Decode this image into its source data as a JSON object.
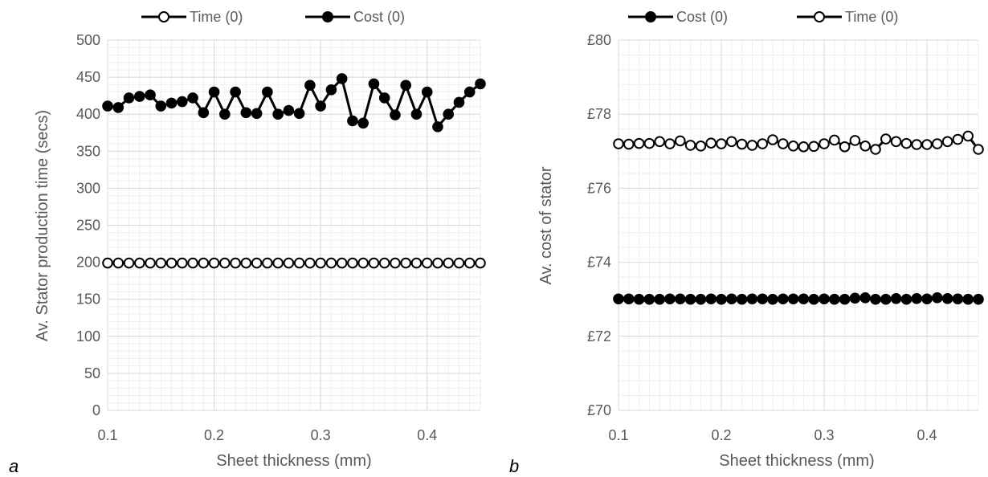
{
  "chart_data": [
    {
      "type": "line",
      "panel_label": "a",
      "xlabel": "Sheet thickness (mm)",
      "ylabel": "Av. Stator production time (secs)",
      "xlim": [
        0.1,
        0.45
      ],
      "ylim": [
        0,
        500
      ],
      "x_ticks": [
        "0.1",
        "0.2",
        "0.3",
        "0.4"
      ],
      "y_ticks": [
        "0",
        "50",
        "100",
        "150",
        "200",
        "250",
        "300",
        "350",
        "400",
        "450",
        "500"
      ],
      "grid": true,
      "legend_position": "top",
      "legend": [
        "Time (0)",
        "Cost (0)"
      ],
      "x": [
        0.1,
        0.11,
        0.12,
        0.13,
        0.14,
        0.15,
        0.16,
        0.17,
        0.18,
        0.19,
        0.2,
        0.21,
        0.22,
        0.23,
        0.24,
        0.25,
        0.26,
        0.27,
        0.28,
        0.29,
        0.3,
        0.31,
        0.32,
        0.33,
        0.34,
        0.35,
        0.36,
        0.37,
        0.38,
        0.39,
        0.4,
        0.41,
        0.42,
        0.43,
        0.44,
        0.45
      ],
      "series": [
        {
          "name": "Time (0)",
          "marker": "open-circle",
          "values": [
            199,
            199,
            199,
            199,
            199,
            199,
            199,
            199,
            199,
            199,
            199,
            199,
            199,
            199,
            199,
            199,
            199,
            199,
            199,
            199,
            199,
            199,
            199,
            199,
            199,
            199,
            199,
            199,
            199,
            199,
            199,
            199,
            199,
            199,
            199,
            199
          ]
        },
        {
          "name": "Cost (0)",
          "marker": "filled-circle",
          "values": [
            411,
            409,
            422,
            424,
            426,
            411,
            415,
            417,
            422,
            402,
            430,
            400,
            430,
            402,
            401,
            430,
            400,
            405,
            401,
            439,
            411,
            433,
            448,
            391,
            388,
            441,
            422,
            399,
            439,
            400,
            430,
            383,
            400,
            416,
            430,
            441
          ]
        }
      ]
    },
    {
      "type": "line",
      "panel_label": "b",
      "xlabel": "Sheet thickness (mm)",
      "ylabel": "Av. cost of stator",
      "xlim": [
        0.1,
        0.45
      ],
      "ylim": [
        70,
        80
      ],
      "x_ticks": [
        "0.1",
        "0.2",
        "0.3",
        "0.4"
      ],
      "y_ticks": [
        "£70",
        "£72",
        "£74",
        "£76",
        "£78",
        "£80"
      ],
      "grid": true,
      "legend_position": "top",
      "legend": [
        "Cost (0)",
        "Time (0)"
      ],
      "x": [
        0.1,
        0.11,
        0.12,
        0.13,
        0.14,
        0.15,
        0.16,
        0.17,
        0.18,
        0.19,
        0.2,
        0.21,
        0.22,
        0.23,
        0.24,
        0.25,
        0.26,
        0.27,
        0.28,
        0.29,
        0.3,
        0.31,
        0.32,
        0.33,
        0.34,
        0.35,
        0.36,
        0.37,
        0.38,
        0.39,
        0.4,
        0.41,
        0.42,
        0.43,
        0.44,
        0.45
      ],
      "series": [
        {
          "name": "Cost (0)",
          "marker": "filled-circle",
          "values": [
            73.01,
            73.01,
            73.0,
            73.0,
            73.0,
            73.01,
            73.01,
            73.0,
            73.0,
            73.01,
            73.0,
            73.01,
            73.0,
            73.01,
            73.01,
            73.0,
            73.01,
            73.01,
            73.01,
            73.0,
            73.01,
            73.0,
            73.0,
            73.03,
            73.04,
            73.0,
            73.0,
            73.02,
            73.0,
            73.02,
            73.01,
            73.04,
            73.02,
            73.01,
            73.0,
            73.0
          ]
        },
        {
          "name": "Time (0)",
          "marker": "open-circle",
          "values": [
            77.2,
            77.19,
            77.21,
            77.21,
            77.26,
            77.2,
            77.28,
            77.16,
            77.14,
            77.22,
            77.2,
            77.26,
            77.19,
            77.16,
            77.2,
            77.31,
            77.2,
            77.14,
            77.12,
            77.13,
            77.2,
            77.3,
            77.12,
            77.29,
            77.14,
            77.05,
            77.33,
            77.26,
            77.21,
            77.18,
            77.18,
            77.2,
            77.26,
            77.32,
            77.41,
            77.05
          ]
        }
      ]
    }
  ],
  "style": {
    "plot_bg": "#ffffff",
    "gridline_color": "#d9d9d9",
    "minor_gridline_color": "#efefef",
    "text_color": "#595959",
    "line_color": "#000000",
    "marker_fill_open": "#ffffff"
  }
}
